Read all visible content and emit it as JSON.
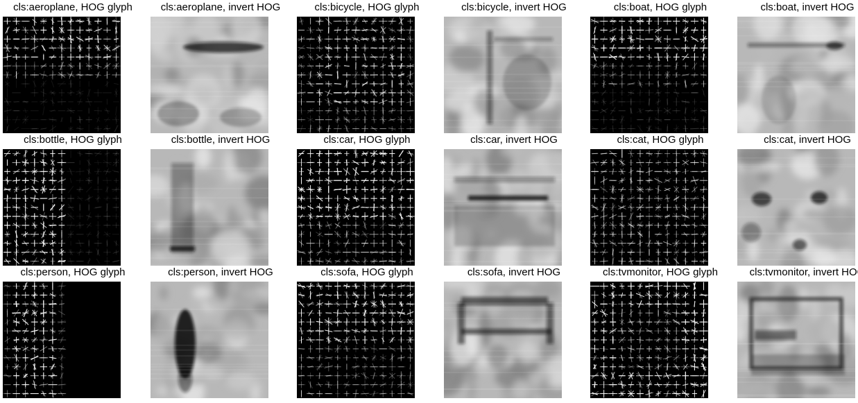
{
  "panels": [
    {
      "title": "cls:aeroplane, HOG glyph",
      "kind": "hog",
      "pattern": "aeroplane"
    },
    {
      "title": "cls:aeroplane, invert HOG",
      "kind": "invert",
      "pattern": "aeroplane"
    },
    {
      "title": "cls:bicycle, HOG glyph",
      "kind": "hog",
      "pattern": "bicycle"
    },
    {
      "title": "cls:bicycle, invert HOG",
      "kind": "invert",
      "pattern": "bicycle"
    },
    {
      "title": "cls:boat, HOG glyph",
      "kind": "hog",
      "pattern": "boat"
    },
    {
      "title": "cls:boat, invert HOG",
      "kind": "invert",
      "pattern": "boat"
    },
    {
      "title": "cls:bottle, HOG glyph",
      "kind": "hog",
      "pattern": "bottle"
    },
    {
      "title": "cls:bottle, invert HOG",
      "kind": "invert",
      "pattern": "bottle"
    },
    {
      "title": "cls:car, HOG glyph",
      "kind": "hog",
      "pattern": "car"
    },
    {
      "title": "cls:car, invert HOG",
      "kind": "invert",
      "pattern": "car"
    },
    {
      "title": "cls:cat, HOG glyph",
      "kind": "hog",
      "pattern": "cat"
    },
    {
      "title": "cls:cat, invert HOG",
      "kind": "invert",
      "pattern": "cat"
    },
    {
      "title": "cls:person, HOG glyph",
      "kind": "hog",
      "pattern": "person"
    },
    {
      "title": "cls:person, invert HOG",
      "kind": "invert",
      "pattern": "person"
    },
    {
      "title": "cls:sofa, HOG glyph",
      "kind": "hog",
      "pattern": "sofa"
    },
    {
      "title": "cls:sofa, invert HOG",
      "kind": "invert",
      "pattern": "sofa"
    },
    {
      "title": "cls:tvmonitor, HOG glyph",
      "kind": "hog",
      "pattern": "tvmonitor"
    },
    {
      "title": "cls:tvmonitor, invert HOG",
      "kind": "invert",
      "pattern": "tvmonitor"
    }
  ]
}
